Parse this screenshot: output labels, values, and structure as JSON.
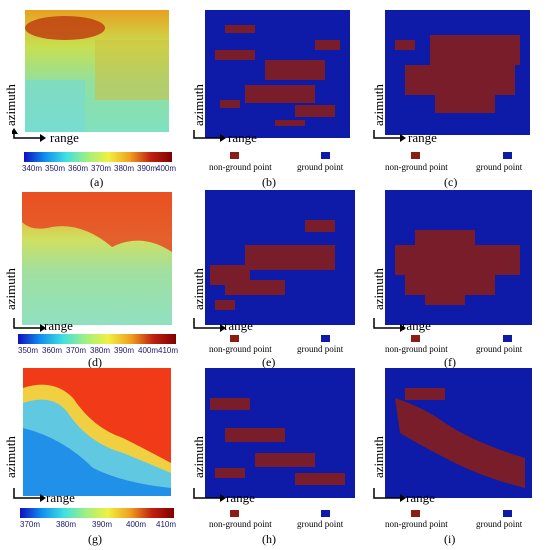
{
  "axes": {
    "x_label": "range",
    "y_label": "azimuth"
  },
  "colorbars": [
    {
      "ticks": [
        "340m",
        "350m",
        "360m",
        "370m",
        "380m",
        "390m",
        "400m"
      ]
    },
    {
      "ticks": [
        "350m",
        "360m",
        "370m",
        "380m",
        "390m",
        "400m",
        "410m"
      ]
    },
    {
      "ticks": [
        "370m",
        "380m",
        "390m",
        "400m",
        "410m"
      ]
    }
  ],
  "legend": {
    "non_ground": "non-ground point",
    "ground": "ground point",
    "non_ground_color": "#8b1e14",
    "ground_color": "#0e1aa8"
  },
  "captions": [
    "(a)",
    "(b)",
    "(c)",
    "(d)",
    "(e)",
    "(f)",
    "(g)",
    "(h)",
    "(i)"
  ]
}
